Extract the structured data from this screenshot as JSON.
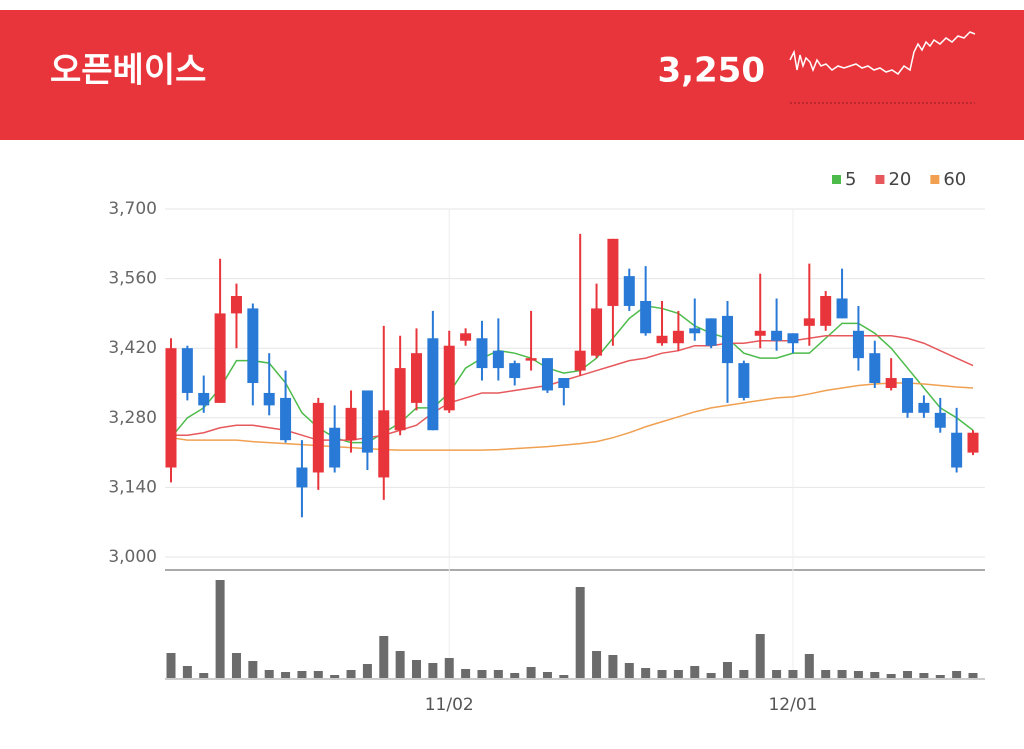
{
  "header": {
    "title": "오픈베이스",
    "price": "3,250"
  },
  "chart_data": {
    "type": "candlestick",
    "categories": [
      null,
      null,
      null,
      null,
      null,
      null,
      null,
      null,
      null,
      null,
      null,
      null,
      null,
      null,
      null,
      null,
      null,
      "11/02",
      null,
      null,
      null,
      null,
      null,
      null,
      null,
      null,
      null,
      null,
      null,
      null,
      null,
      null,
      null,
      null,
      null,
      null,
      null,
      null,
      "12/01",
      null,
      null,
      null,
      null,
      null,
      null,
      null,
      null,
      null,
      null,
      null
    ],
    "open": [
      3180,
      3420,
      3330,
      3310,
      3490,
      3500,
      3330,
      3320,
      3180,
      3170,
      3260,
      3235,
      3335,
      3160,
      3255,
      3310,
      3440,
      3295,
      3435,
      3440,
      3415,
      3390,
      3395,
      3400,
      3360,
      3375,
      3405,
      3505,
      3565,
      3515,
      3430,
      3430,
      3460,
      3480,
      3485,
      3390,
      3445,
      3455,
      3450,
      3465,
      3465,
      3520,
      3455,
      3410,
      3340,
      3360,
      3310,
      3290,
      3250,
      3210
    ],
    "high": [
      3440,
      3425,
      3365,
      3600,
      3550,
      3510,
      3410,
      3375,
      3235,
      3320,
      3305,
      3335,
      3335,
      3465,
      3445,
      3460,
      3495,
      3455,
      3460,
      3475,
      3480,
      3395,
      3495,
      3400,
      3360,
      3650,
      3550,
      3640,
      3580,
      3585,
      3515,
      3495,
      3520,
      3480,
      3515,
      3395,
      3570,
      3520,
      3450,
      3590,
      3535,
      3580,
      3505,
      3435,
      3400,
      3360,
      3325,
      3320,
      3300,
      3255
    ],
    "low": [
      3150,
      3315,
      3290,
      3310,
      3420,
      3305,
      3285,
      3230,
      3080,
      3135,
      3170,
      3210,
      3175,
      3115,
      3245,
      3295,
      3255,
      3290,
      3425,
      3355,
      3355,
      3345,
      3375,
      3330,
      3305,
      3365,
      3400,
      3425,
      3495,
      3445,
      3425,
      3415,
      3435,
      3420,
      3310,
      3315,
      3420,
      3415,
      3410,
      3425,
      3455,
      3480,
      3375,
      3340,
      3335,
      3280,
      3280,
      3250,
      3170,
      3205
    ],
    "close": [
      3420,
      3330,
      3305,
      3490,
      3525,
      3350,
      3305,
      3235,
      3140,
      3310,
      3180,
      3300,
      3210,
      3295,
      3380,
      3410,
      3255,
      3425,
      3450,
      3380,
      3380,
      3360,
      3400,
      3335,
      3340,
      3415,
      3500,
      3640,
      3505,
      3450,
      3445,
      3455,
      3450,
      3425,
      3390,
      3320,
      3455,
      3435,
      3430,
      3480,
      3525,
      3480,
      3400,
      3350,
      3360,
      3290,
      3290,
      3260,
      3180,
      3250
    ],
    "up_color": "#e8353b",
    "down_color": "#2979d6",
    "ylim": [
      3000,
      3700
    ],
    "yticks": [
      {
        "value": 3000,
        "label": "3,000"
      },
      {
        "value": 3140,
        "label": "3,140"
      },
      {
        "value": 3280,
        "label": "3,280"
      },
      {
        "value": 3420,
        "label": "3,420"
      },
      {
        "value": 3560,
        "label": "3,560"
      },
      {
        "value": 3700,
        "label": "3,700"
      }
    ],
    "grid": true,
    "series": [
      {
        "name": "5",
        "color": "#4cbb4a",
        "values": [
          3240,
          3280,
          3300,
          3340,
          3395,
          3395,
          3390,
          3350,
          3290,
          3260,
          3240,
          3230,
          3230,
          3250,
          3270,
          3300,
          3300,
          3330,
          3380,
          3400,
          3415,
          3410,
          3400,
          3380,
          3370,
          3375,
          3400,
          3440,
          3480,
          3505,
          3500,
          3490,
          3465,
          3450,
          3440,
          3410,
          3400,
          3400,
          3410,
          3410,
          3440,
          3470,
          3470,
          3450,
          3420,
          3380,
          3340,
          3300,
          3280,
          3255
        ]
      },
      {
        "name": "20",
        "color": "#e6585c",
        "values": [
          3245,
          3245,
          3250,
          3260,
          3265,
          3265,
          3260,
          3255,
          3245,
          3235,
          3235,
          3235,
          3240,
          3245,
          3255,
          3265,
          3290,
          3310,
          3320,
          3330,
          3330,
          3335,
          3340,
          3345,
          3355,
          3365,
          3375,
          3385,
          3395,
          3400,
          3410,
          3415,
          3425,
          3425,
          3430,
          3430,
          3435,
          3435,
          3435,
          3440,
          3445,
          3445,
          3445,
          3445,
          3445,
          3440,
          3430,
          3415,
          3400,
          3385
        ]
      },
      {
        "name": "60",
        "color": "#f0a050",
        "values": [
          3240,
          3235,
          3235,
          3235,
          3235,
          3232,
          3230,
          3228,
          3226,
          3224,
          3222,
          3220,
          3218,
          3216,
          3215,
          3215,
          3215,
          3215,
          3215,
          3215,
          3216,
          3218,
          3220,
          3222,
          3225,
          3228,
          3232,
          3240,
          3250,
          3262,
          3272,
          3282,
          3292,
          3300,
          3305,
          3310,
          3315,
          3320,
          3322,
          3328,
          3335,
          3340,
          3345,
          3348,
          3350,
          3350,
          3348,
          3345,
          3342,
          3340
        ]
      }
    ],
    "volume": [
      25,
      12,
      5,
      98,
      25,
      17,
      8,
      6,
      7,
      7,
      3,
      8,
      14,
      42,
      27,
      18,
      15,
      20,
      9,
      8,
      8,
      5,
      11,
      6,
      3,
      91,
      27,
      23,
      15,
      10,
      8,
      8,
      12,
      5,
      16,
      8,
      44,
      8,
      8,
      24,
      8,
      8,
      7,
      6,
      4,
      7,
      5,
      3,
      7,
      5
    ],
    "volume_color": "#6b6b6b"
  }
}
